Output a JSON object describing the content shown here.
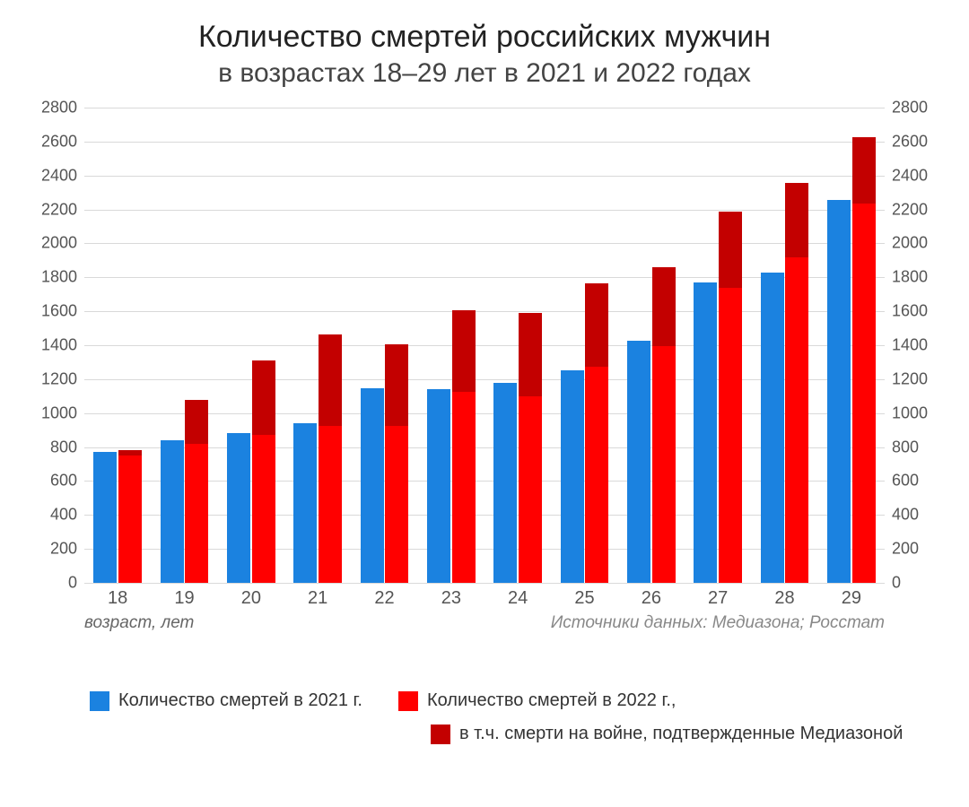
{
  "title": {
    "line1": "Количество смертей российских мужчин",
    "line2": "в возрастах 18–29 лет в 2021 и 2022 годах",
    "fontsize_line1": 34,
    "fontsize_line2": 30,
    "color": "#222222"
  },
  "chart": {
    "type": "bar",
    "background_color": "#ffffff",
    "grid_color": "#d9d9d9",
    "ylim": [
      0,
      2800
    ],
    "ytick_step": 200,
    "yticks": [
      0,
      200,
      400,
      600,
      800,
      1000,
      1200,
      1400,
      1600,
      1800,
      2000,
      2200,
      2400,
      2600,
      2800
    ],
    "categories": [
      "18",
      "19",
      "20",
      "21",
      "22",
      "23",
      "24",
      "25",
      "26",
      "27",
      "28",
      "29"
    ],
    "x_axis_title": "возраст, лет",
    "source_text": "Источники данных: Медиазона; Росстат",
    "label_fontsize": 18,
    "x_label_fontsize": 20,
    "group_width_pct": 6.0,
    "bar_gap_pct": 0.2,
    "series": {
      "deaths_2021": {
        "color": "#1b82e0",
        "values": [
          770,
          840,
          880,
          940,
          1145,
          1140,
          1180,
          1250,
          1425,
          1770,
          1830,
          2255
        ]
      },
      "deaths_2022_base": {
        "color": "#ff0000",
        "values": [
          750,
          820,
          870,
          925,
          925,
          1125,
          1100,
          1275,
          1395,
          1740,
          1920,
          2235
        ]
      },
      "deaths_2022_war": {
        "color": "#c30000",
        "values": [
          30,
          260,
          440,
          540,
          480,
          480,
          490,
          490,
          465,
          445,
          435,
          390
        ]
      }
    }
  },
  "legend": {
    "items": [
      {
        "swatch": "#1b82e0",
        "label": "Количество смертей в 2021 г."
      },
      {
        "swatch": "#ff0000",
        "label": "Количество смертей в 2022 г.,"
      },
      {
        "swatch": "#c30000",
        "label": "в т.ч. смерти на войне, подтвержденные Медиазоной"
      }
    ]
  }
}
